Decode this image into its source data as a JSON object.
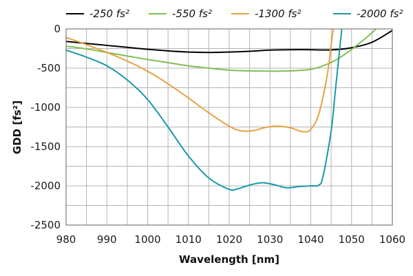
{
  "chart_data": {
    "type": "line",
    "title": "",
    "xlabel": "Wavelength [nm]",
    "ylabel": "GDD [fs²]",
    "xlim": [
      980,
      1060
    ],
    "ylim": [
      -2500,
      0
    ],
    "x_ticks": [
      980,
      990,
      1000,
      1010,
      1020,
      1030,
      1040,
      1050,
      1060
    ],
    "y_ticks": [
      0,
      -500,
      -1000,
      -1500,
      -2000,
      -2500
    ],
    "x_minor_step": 5,
    "y_minor_step": 250,
    "grid": true,
    "legend_position": "top",
    "series": [
      {
        "name": "-250 fs²",
        "color": "#000000",
        "points": [
          [
            980,
            -160
          ],
          [
            985,
            -185
          ],
          [
            990,
            -210
          ],
          [
            995,
            -235
          ],
          [
            1000,
            -260
          ],
          [
            1005,
            -280
          ],
          [
            1010,
            -295
          ],
          [
            1015,
            -300
          ],
          [
            1020,
            -295
          ],
          [
            1025,
            -285
          ],
          [
            1030,
            -270
          ],
          [
            1035,
            -265
          ],
          [
            1040,
            -265
          ],
          [
            1045,
            -268
          ],
          [
            1050,
            -240
          ],
          [
            1055,
            -170
          ],
          [
            1060,
            -20
          ]
        ]
      },
      {
        "name": "-550 fs²",
        "color": "#7fbf4d",
        "points": [
          [
            980,
            -220
          ],
          [
            985,
            -255
          ],
          [
            990,
            -300
          ],
          [
            995,
            -345
          ],
          [
            1000,
            -390
          ],
          [
            1005,
            -430
          ],
          [
            1010,
            -470
          ],
          [
            1015,
            -500
          ],
          [
            1020,
            -525
          ],
          [
            1025,
            -535
          ],
          [
            1030,
            -538
          ],
          [
            1035,
            -535
          ],
          [
            1040,
            -515
          ],
          [
            1043,
            -470
          ],
          [
            1046,
            -400
          ],
          [
            1049,
            -300
          ],
          [
            1052,
            -180
          ],
          [
            1055,
            -50
          ],
          [
            1056,
            0
          ]
        ]
      },
      {
        "name": "-1300 fs²",
        "color": "#e8a040",
        "points": [
          [
            980,
            -110
          ],
          [
            985,
            -200
          ],
          [
            990,
            -300
          ],
          [
            995,
            -410
          ],
          [
            1000,
            -540
          ],
          [
            1005,
            -700
          ],
          [
            1010,
            -880
          ],
          [
            1015,
            -1070
          ],
          [
            1020,
            -1240
          ],
          [
            1023,
            -1300
          ],
          [
            1026,
            -1295
          ],
          [
            1029,
            -1255
          ],
          [
            1032,
            -1240
          ],
          [
            1035,
            -1260
          ],
          [
            1038,
            -1310
          ],
          [
            1040,
            -1280
          ],
          [
            1042,
            -1080
          ],
          [
            1044,
            -600
          ],
          [
            1045,
            -200
          ],
          [
            1045.5,
            0
          ]
        ]
      },
      {
        "name": "-2000 fs²",
        "color": "#1898a8",
        "points": [
          [
            980,
            -270
          ],
          [
            985,
            -360
          ],
          [
            990,
            -470
          ],
          [
            995,
            -650
          ],
          [
            1000,
            -900
          ],
          [
            1005,
            -1250
          ],
          [
            1010,
            -1620
          ],
          [
            1015,
            -1900
          ],
          [
            1020,
            -2045
          ],
          [
            1022,
            -2040
          ],
          [
            1025,
            -1990
          ],
          [
            1028,
            -1960
          ],
          [
            1031,
            -1985
          ],
          [
            1034,
            -2025
          ],
          [
            1037,
            -2010
          ],
          [
            1040,
            -2000
          ],
          [
            1042,
            -1990
          ],
          [
            1043,
            -1880
          ],
          [
            1045,
            -1300
          ],
          [
            1046,
            -800
          ],
          [
            1047,
            -300
          ],
          [
            1047.6,
            0
          ]
        ]
      }
    ]
  }
}
